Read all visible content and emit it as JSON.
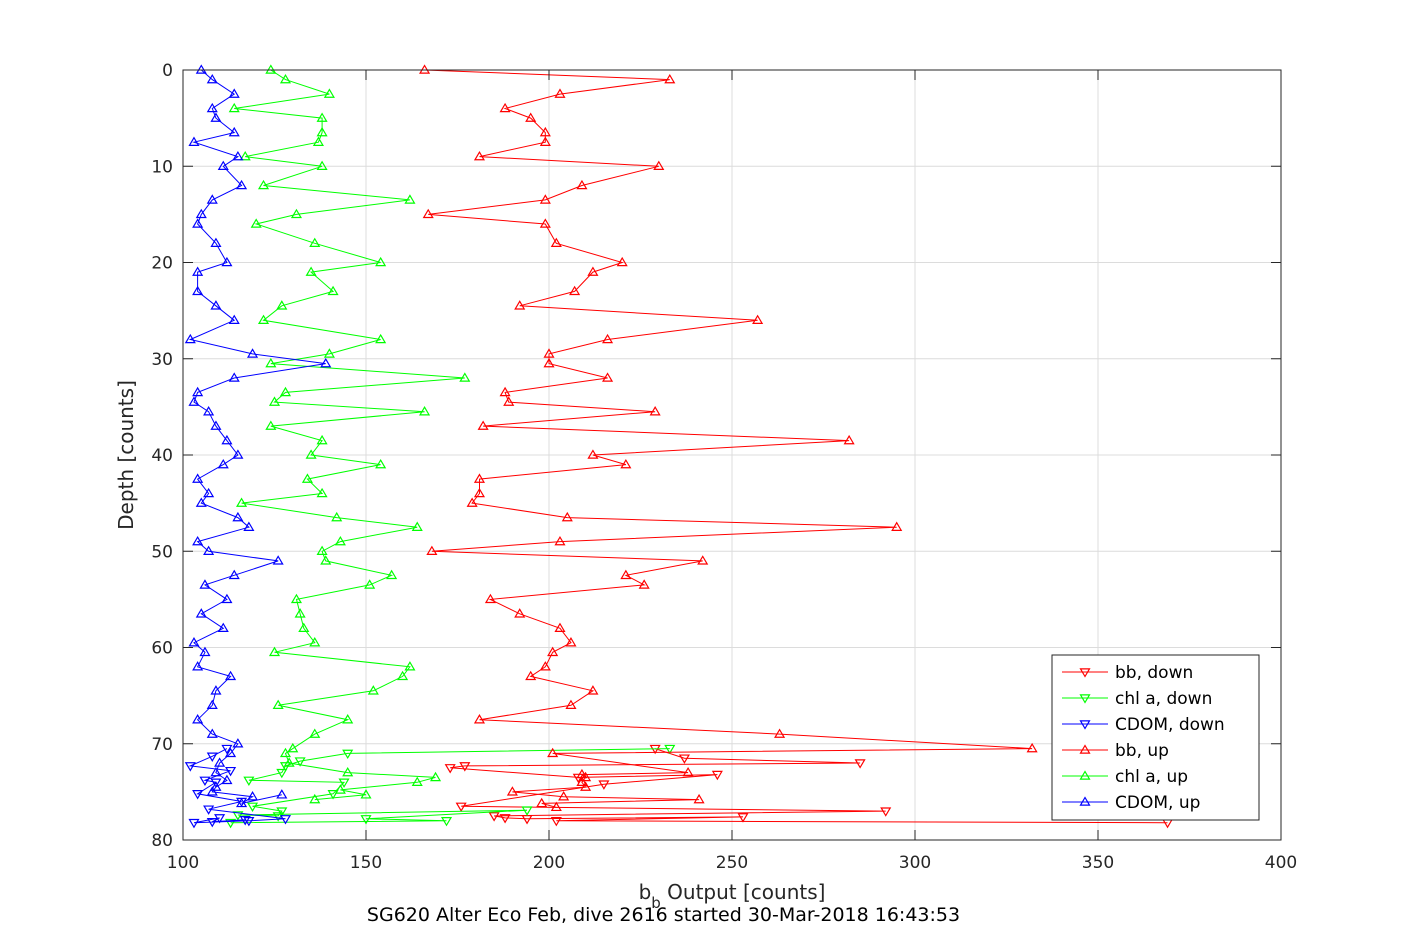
{
  "caption": "SG620 Alter Eco Feb, dive 2616 started 30-Mar-2018 16:43:53",
  "chart_data": {
    "type": "line",
    "xlabel_main": "b",
    "xlabel_sub": "b",
    "xlabel_rest": " Output [counts]",
    "ylabel": "Depth [counts]",
    "xlim": [
      100,
      400
    ],
    "ylim": [
      0,
      80
    ],
    "y_reversed": true,
    "xticks": [
      100,
      150,
      200,
      250,
      300,
      350,
      400
    ],
    "yticks": [
      0,
      10,
      20,
      30,
      40,
      50,
      60,
      70,
      80
    ],
    "grid": true,
    "legend_position": "bottom-right",
    "series": [
      {
        "name": "bb, down",
        "color": "#ff0000",
        "marker": "down",
        "x": [
          229,
          237,
          285,
          177,
          173,
          208,
          246,
          215,
          176,
          292,
          185,
          188,
          194,
          253,
          202,
          369
        ],
        "y": [
          70.5,
          71.5,
          72,
          72.3,
          72.5,
          73.5,
          73.2,
          74.2,
          76.5,
          77,
          77.5,
          77.7,
          77.8,
          77.6,
          78,
          78.2
        ]
      },
      {
        "name": "chl a, down",
        "color": "#00ff00",
        "marker": "down",
        "x": [
          233,
          145,
          132,
          128,
          127,
          118,
          144,
          141,
          119,
          127,
          126,
          115,
          194,
          150,
          172,
          113
        ],
        "y": [
          70.5,
          71,
          71.8,
          72.3,
          73,
          73.8,
          74,
          75.2,
          76.5,
          77,
          77.5,
          77.4,
          76.9,
          77.8,
          78,
          78.2
        ]
      },
      {
        "name": "CDOM, down",
        "color": "#0000ff",
        "marker": "down",
        "x": [
          112,
          108,
          102,
          113,
          106,
          109,
          104,
          116,
          107,
          128,
          118,
          103,
          110,
          108,
          117
        ],
        "y": [
          70.5,
          71.3,
          72.3,
          72.8,
          73.8,
          74,
          75.2,
          76,
          76.8,
          77.8,
          78,
          78.2,
          77.7,
          78.1,
          77.9
        ]
      },
      {
        "name": "bb, up",
        "color": "#ff0000",
        "marker": "up",
        "x": [
          166,
          233,
          203,
          188,
          195,
          199,
          199,
          181,
          230,
          209,
          199,
          167,
          199,
          202,
          220,
          212,
          207,
          192,
          257,
          216,
          200,
          200,
          216,
          188,
          189,
          229,
          182,
          282,
          212,
          221,
          181,
          181,
          179,
          205,
          295,
          203,
          168,
          242,
          221,
          226,
          184,
          192,
          203,
          206,
          201,
          199,
          195,
          212,
          206,
          181,
          263,
          332,
          201,
          238,
          209,
          210,
          209,
          210,
          190,
          204,
          241,
          198,
          202
        ],
        "y": [
          0,
          1,
          2.5,
          4,
          5,
          6.5,
          7.5,
          9,
          10,
          12,
          13.5,
          15,
          16,
          18,
          20,
          21,
          23,
          24.5,
          26,
          28,
          29.5,
          30.5,
          32,
          33.5,
          34.5,
          35.5,
          37,
          38.5,
          40,
          41,
          42.5,
          44,
          45,
          46.5,
          47.5,
          49,
          50,
          51,
          52.5,
          53.5,
          55,
          56.5,
          58,
          59.5,
          60.5,
          62,
          63,
          64.5,
          66,
          67.5,
          69,
          70.5,
          71,
          73,
          73.2,
          73.5,
          74,
          74.5,
          75,
          75.5,
          75.8,
          76.2,
          76.6
        ]
      },
      {
        "name": "chl a, up",
        "color": "#00ff00",
        "marker": "up",
        "x": [
          124,
          128,
          140,
          114,
          138,
          138,
          137,
          117,
          138,
          122,
          162,
          131,
          120,
          136,
          154,
          135,
          141,
          127,
          122,
          154,
          140,
          124,
          177,
          128,
          125,
          166,
          124,
          138,
          135,
          154,
          134,
          138,
          116,
          142,
          164,
          143,
          138,
          139,
          157,
          151,
          131,
          132,
          133,
          136,
          125,
          162,
          160,
          152,
          126,
          145,
          136,
          130,
          128,
          129,
          145,
          169,
          164,
          143,
          150,
          136
        ],
        "y": [
          0,
          1,
          2.5,
          4,
          5,
          6.5,
          7.5,
          9,
          10,
          12,
          13.5,
          15,
          16,
          18,
          20,
          21,
          23,
          24.5,
          26,
          28,
          29.5,
          30.5,
          32,
          33.5,
          34.5,
          35.5,
          37,
          38.5,
          40,
          41,
          42.5,
          44,
          45,
          46.5,
          47.5,
          49,
          50,
          51,
          52.5,
          53.5,
          55,
          56.5,
          58,
          59.5,
          60.5,
          62,
          63,
          64.5,
          66,
          67.5,
          69,
          70.5,
          71,
          72,
          73,
          73.5,
          74,
          74.8,
          75.3,
          75.8
        ]
      },
      {
        "name": "CDOM, up",
        "color": "#0000ff",
        "marker": "up",
        "x": [
          105,
          108,
          114,
          108,
          109,
          114,
          103,
          115,
          111,
          116,
          108,
          105,
          104,
          109,
          112,
          104,
          104,
          109,
          114,
          102,
          119,
          139,
          114,
          104,
          103,
          107,
          109,
          112,
          115,
          111,
          104,
          107,
          105,
          115,
          118,
          104,
          107,
          126,
          114,
          106,
          112,
          105,
          111,
          103,
          106,
          104,
          113,
          109,
          108,
          104,
          108,
          115,
          113,
          110,
          109,
          112,
          109,
          108,
          119,
          116,
          127
        ],
        "y": [
          0,
          1,
          2.5,
          4,
          5,
          6.5,
          7.5,
          9,
          10,
          12,
          13.5,
          15,
          16,
          18,
          20,
          21,
          23,
          24.5,
          26,
          28,
          29.5,
          30.5,
          32,
          33.5,
          34.5,
          35.5,
          37,
          38.5,
          40,
          41,
          42.5,
          44,
          45,
          46.5,
          47.5,
          49,
          50,
          51,
          52.5,
          53.5,
          55,
          56.5,
          58,
          59.5,
          60.5,
          62,
          63,
          64.5,
          66,
          67.5,
          69,
          70,
          71,
          72,
          73,
          73.8,
          74.5,
          75,
          75.5,
          76.2,
          75.3
        ]
      }
    ]
  }
}
